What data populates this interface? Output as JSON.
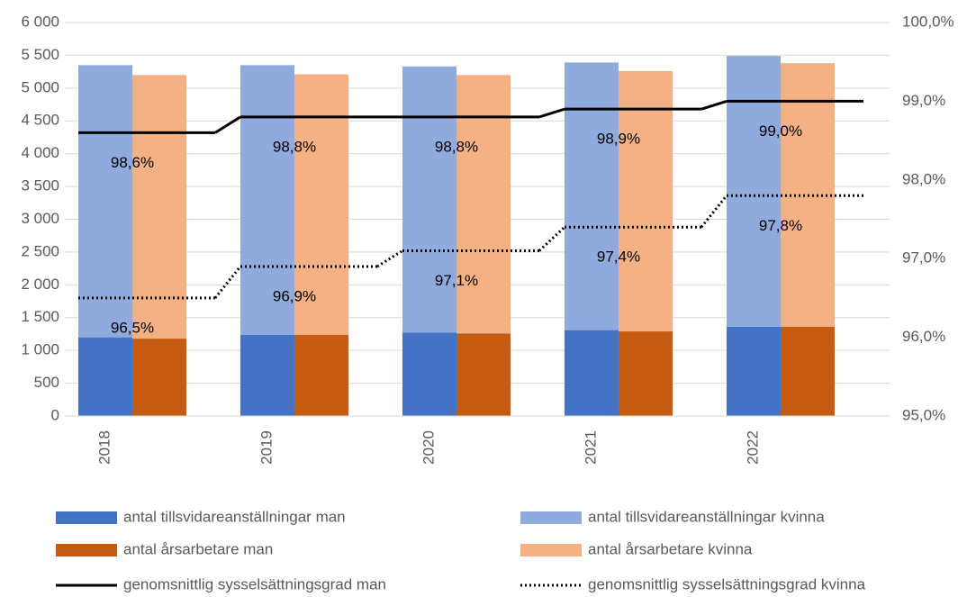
{
  "chart_data": {
    "type": "bar",
    "categories": [
      "2018",
      "2019",
      "2020",
      "2021",
      "2022"
    ],
    "series": [
      {
        "name": "antal tillsvidareanställningar man",
        "type": "bar",
        "stack": "tillsvidare",
        "color": "#4472c4",
        "values": [
          1200,
          1240,
          1270,
          1310,
          1360
        ]
      },
      {
        "name": "antal tillsvidareanställningar kvinna",
        "type": "bar",
        "stack": "tillsvidare",
        "color": "#8faadc",
        "values": [
          4150,
          4110,
          4060,
          4080,
          4130
        ]
      },
      {
        "name": "antal årsarbetare man",
        "type": "bar",
        "stack": "arsarbetare",
        "color": "#c55a11",
        "values": [
          1180,
          1240,
          1260,
          1290,
          1360
        ]
      },
      {
        "name": "antal årsarbetare kvinna",
        "type": "bar",
        "stack": "arsarbetare",
        "color": "#f4b183",
        "values": [
          4020,
          3970,
          3940,
          3970,
          4020
        ]
      },
      {
        "name": "genomsnittlig sysselsättningsgrad man",
        "type": "line",
        "axis": "y2",
        "dash": "solid",
        "color": "#000000",
        "values": [
          98.6,
          98.8,
          98.8,
          98.9,
          99.0
        ],
        "value_labels": [
          "98,6%",
          "98,8%",
          "98,8%",
          "98,9%",
          "99,0%"
        ]
      },
      {
        "name": "genomsnittlig sysselsättningsgrad kvinna",
        "type": "line",
        "axis": "y2",
        "dash": "dotted",
        "color": "#000000",
        "values": [
          96.5,
          96.9,
          97.1,
          97.4,
          97.8
        ],
        "value_labels": [
          "96,5%",
          "96,9%",
          "97,1%",
          "97,4%",
          "97,8%"
        ]
      }
    ],
    "ylim": [
      0,
      6000
    ],
    "yticks": [
      0,
      500,
      {
        "value": 1000,
        "label": "1 000"
      },
      {
        "value": 1500,
        "label": "1 500"
      },
      {
        "value": 2000,
        "label": "2 000"
      },
      {
        "value": 2500,
        "label": "2 500"
      },
      {
        "value": 3000,
        "label": "3 000"
      },
      {
        "value": 3500,
        "label": "3 500"
      },
      {
        "value": 4000,
        "label": "4 000"
      },
      {
        "value": 4500,
        "label": "4 500"
      },
      {
        "value": 5000,
        "label": "5 000"
      },
      {
        "value": 5500,
        "label": "5 500"
      },
      {
        "value": 6000,
        "label": "6 000"
      }
    ],
    "y2lim": [
      95,
      100
    ],
    "y2ticks": [
      {
        "value": 95,
        "label": "95,0%"
      },
      {
        "value": 96,
        "label": "96,0%"
      },
      {
        "value": 97,
        "label": "97,0%"
      },
      {
        "value": 98,
        "label": "98,0%"
      },
      {
        "value": 99,
        "label": "99,0%"
      },
      {
        "value": 100,
        "label": "100,0%"
      }
    ],
    "grid": true,
    "legend": "bottom"
  }
}
